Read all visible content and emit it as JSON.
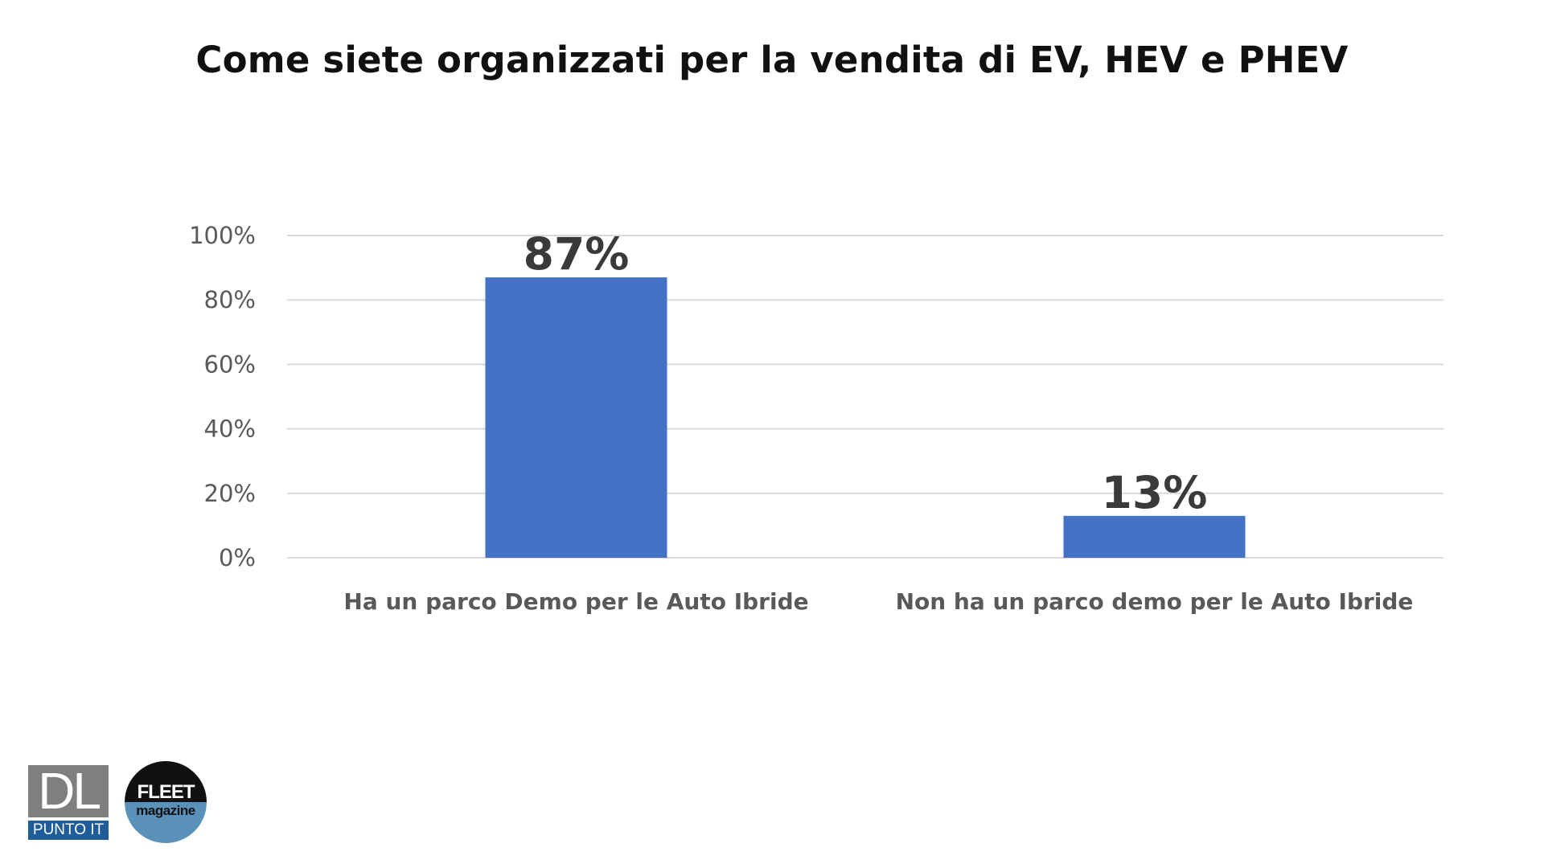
{
  "title": "Come siete organizzati per la vendita di EV, HEV e PHEV",
  "colors": {
    "bar": "#4472c4",
    "gridline": "#d9d9d9",
    "axis_text": "#595959",
    "data_label": "#3a3a3a",
    "title": "#111111"
  },
  "chart_data": {
    "type": "bar",
    "title": "",
    "xlabel": "",
    "ylabel": "",
    "categories": [
      "Ha un parco Demo per le Auto Ibride",
      "Non ha un parco demo per le Auto Ibride"
    ],
    "values": [
      87,
      13
    ],
    "data_labels": [
      "87%",
      "13%"
    ],
    "ylim": [
      0,
      100
    ],
    "yticks": [
      0,
      20,
      40,
      60,
      80,
      100
    ],
    "ytick_labels": [
      "0%",
      "20%",
      "40%",
      "60%",
      "80%",
      "100%"
    ],
    "grid": true,
    "legend": "none"
  },
  "logos": {
    "dl": {
      "mark": "DL",
      "text": "PUNTO IT"
    },
    "fleet": {
      "word": "FLEET",
      "sub": "magazine"
    }
  }
}
